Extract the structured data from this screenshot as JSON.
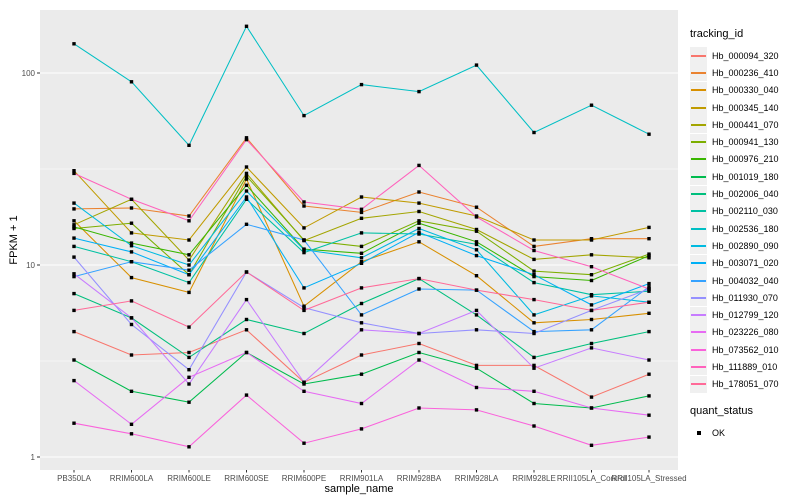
{
  "panel": {
    "background": "#EBEBEB",
    "grid_color": "#FFFFFF",
    "tick_label_color": "#4D4D4D",
    "point_color": "#000000"
  },
  "legend": {
    "tracking_title": "tracking_id",
    "quant_title": "quant_status",
    "quant_items": [
      {
        "label": "OK"
      }
    ]
  },
  "chart_data": {
    "type": "line",
    "title": "",
    "xlabel": "sample_name",
    "ylabel": "FPKM + 1",
    "y_scale": "log10",
    "ylim": [
      0.86,
      215
    ],
    "y_ticks": [
      {
        "value": 1,
        "label": "1"
      },
      {
        "value": 10,
        "label": "10"
      },
      {
        "value": 100,
        "label": "100"
      }
    ],
    "y_minor_ticks": [
      3.162,
      31.623
    ],
    "grid": true,
    "legend_position": "right",
    "marker": "black-square",
    "categories": [
      "PB350LA",
      "RRIM600LA",
      "RRIM600LE",
      "RRIM600SE",
      "RRIM600PE",
      "RRIM901LA",
      "RRIM928BA",
      "RRIM928LA",
      "RRIM928LE",
      "RRII105LA_Control",
      "RRII105LA_Stressed"
    ],
    "series": [
      {
        "name": "Hb_000094_320",
        "color": "#F8766D",
        "values": [
          4.5,
          3.4,
          3.5,
          4.6,
          2.45,
          3.4,
          3.9,
          3.0,
          3.0,
          2.05,
          2.7
        ]
      },
      {
        "name": "Hb_000236_410",
        "color": "#EA8331",
        "values": [
          19.6,
          19.8,
          18.0,
          46.0,
          20.3,
          18.8,
          24.0,
          20.0,
          12.5,
          13.7,
          13.7
        ]
      },
      {
        "name": "Hb_000330_040",
        "color": "#D89000",
        "values": [
          17.0,
          8.6,
          7.2,
          28.0,
          6.1,
          10.4,
          13.2,
          8.8,
          5.0,
          5.2,
          5.6
        ]
      },
      {
        "name": "Hb_000345_140",
        "color": "#C09B00",
        "values": [
          31.0,
          14.7,
          13.5,
          32.4,
          15.6,
          22.6,
          21.0,
          18.0,
          13.5,
          13.5,
          15.7
        ]
      },
      {
        "name": "Hb_000441_070",
        "color": "#A3A500",
        "values": [
          16.2,
          22.0,
          10.6,
          30.0,
          13.4,
          17.5,
          19.0,
          15.3,
          10.7,
          11.3,
          10.9
        ]
      },
      {
        "name": "Hb_000941_130",
        "color": "#7CAE00",
        "values": [
          15.5,
          16.5,
          8.9,
          29.0,
          13.5,
          12.5,
          17.0,
          15.0,
          9.3,
          8.9,
          11.4
        ]
      },
      {
        "name": "Hb_000976_210",
        "color": "#39B600",
        "values": [
          15.8,
          13.0,
          11.3,
          26.0,
          12.1,
          11.5,
          16.5,
          13.2,
          8.7,
          8.3,
          11.2
        ]
      },
      {
        "name": "Hb_001019_180",
        "color": "#00BB4E",
        "values": [
          3.2,
          2.2,
          1.93,
          3.5,
          2.4,
          2.7,
          3.5,
          2.9,
          1.9,
          1.8,
          2.08
        ]
      },
      {
        "name": "Hb_002006_040",
        "color": "#00BF7D",
        "values": [
          7.1,
          5.3,
          3.3,
          5.2,
          4.4,
          6.3,
          8.5,
          5.5,
          3.3,
          3.9,
          4.5
        ]
      },
      {
        "name": "Hb_002110_030",
        "color": "#00C1A3",
        "values": [
          12.5,
          10.4,
          8.1,
          22.0,
          11.6,
          14.7,
          14.5,
          12.8,
          8.1,
          7.0,
          7.3
        ]
      },
      {
        "name": "Hb_002536_180",
        "color": "#00BFC4",
        "values": [
          142,
          90,
          42,
          175,
          60,
          87,
          80,
          110,
          49,
          68,
          48
        ]
      },
      {
        "name": "Hb_002890_090",
        "color": "#00BAE0",
        "values": [
          21.0,
          12.6,
          10.0,
          24.3,
          12.0,
          10.9,
          15.5,
          12.0,
          5.5,
          6.9,
          6.4
        ]
      },
      {
        "name": "Hb_003071_020",
        "color": "#00B0F6",
        "values": [
          13.8,
          11.7,
          8.9,
          22.6,
          7.6,
          10.2,
          14.8,
          11.2,
          8.9,
          6.2,
          8.0
        ]
      },
      {
        "name": "Hb_004032_040",
        "color": "#35A2FF",
        "values": [
          8.7,
          10.4,
          9.4,
          16.3,
          13.5,
          5.5,
          7.5,
          7.4,
          4.5,
          4.6,
          7.7
        ]
      },
      {
        "name": "Hb_011930_070",
        "color": "#9590FF",
        "values": [
          11.0,
          4.9,
          2.85,
          9.2,
          6.0,
          5.0,
          4.4,
          4.6,
          4.4,
          5.8,
          7.5
        ]
      },
      {
        "name": "Hb_012799_120",
        "color": "#C77CFF",
        "values": [
          9.0,
          5.3,
          2.4,
          6.6,
          2.45,
          4.6,
          4.4,
          5.8,
          2.9,
          3.7,
          3.2
        ]
      },
      {
        "name": "Hb_023226_080",
        "color": "#E76BF3",
        "values": [
          2.5,
          1.48,
          2.6,
          3.5,
          2.2,
          1.9,
          3.2,
          2.3,
          2.2,
          1.8,
          1.65
        ]
      },
      {
        "name": "Hb_073562_010",
        "color": "#FA62DB",
        "values": [
          1.5,
          1.32,
          1.13,
          2.1,
          1.18,
          1.4,
          1.8,
          1.76,
          1.45,
          1.15,
          1.27
        ]
      },
      {
        "name": "Hb_111889_010",
        "color": "#FF62BC",
        "values": [
          30.0,
          22.0,
          17.0,
          45.0,
          21.3,
          19.5,
          33.0,
          17.8,
          11.9,
          9.8,
          7.5
        ]
      },
      {
        "name": "Hb_178051_070",
        "color": "#FF6A98",
        "values": [
          5.8,
          6.5,
          4.75,
          9.2,
          5.8,
          7.6,
          8.5,
          7.4,
          6.6,
          5.8,
          6.4
        ]
      }
    ]
  }
}
